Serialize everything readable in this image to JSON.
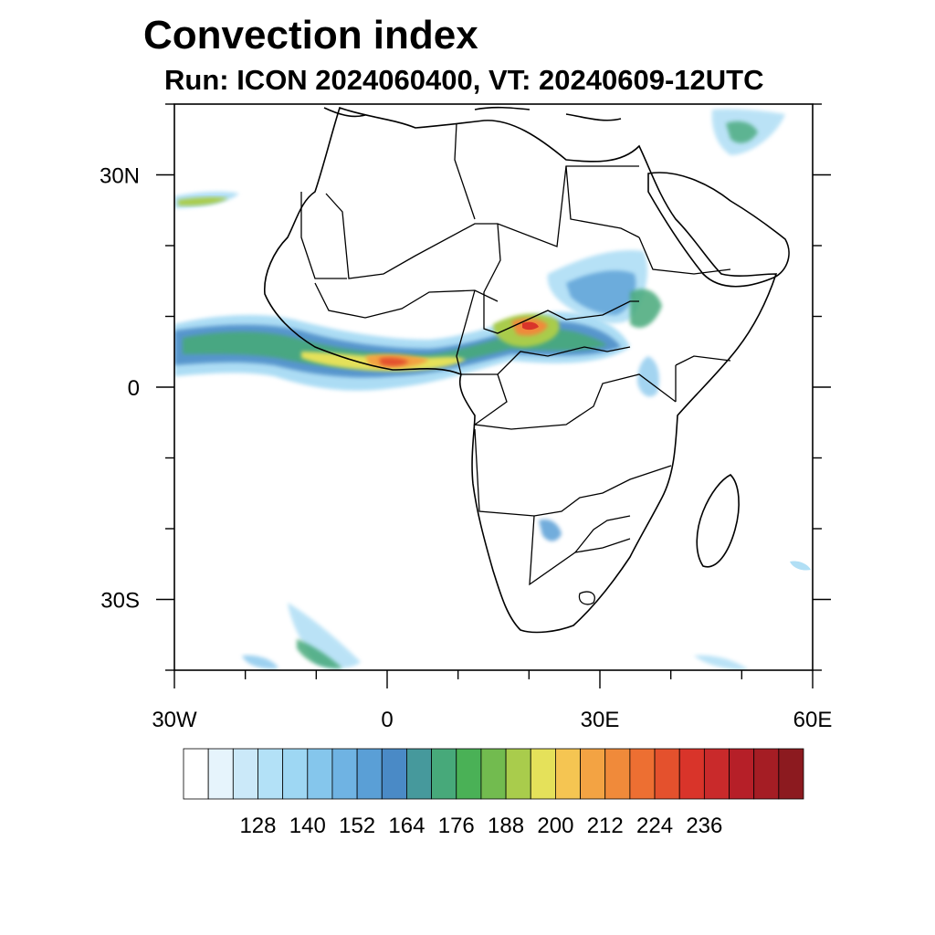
{
  "title": "Convection index",
  "subtitle": "Run: ICON 2024060400,  VT: 20240609-12UTC",
  "map": {
    "lon_ticks": [
      {
        "lon": -30,
        "label": "30W"
      },
      {
        "lon": 0,
        "label": "0"
      },
      {
        "lon": 30,
        "label": "30E"
      },
      {
        "lon": 60,
        "label": "60E"
      }
    ],
    "lat_ticks": [
      {
        "lat": 30,
        "label": "30N"
      },
      {
        "lat": 0,
        "label": "0"
      },
      {
        "lat": -30,
        "label": "30S"
      }
    ],
    "lon_range": [
      -30,
      60
    ],
    "lat_range": [
      -40,
      40
    ]
  },
  "colorbar": {
    "colors": [
      "#ffffff",
      "#e6f4fc",
      "#cbe9f9",
      "#b3e1f7",
      "#9ed7f3",
      "#85c6ec",
      "#6fb3e3",
      "#5a9fd6",
      "#4a8ac6",
      "#46999c",
      "#47a97a",
      "#4ab156",
      "#72bb4f",
      "#a9cc4c",
      "#e5e15a",
      "#f5c552",
      "#f3a343",
      "#f08a3a",
      "#ed6f32",
      "#e4512d",
      "#d9342a",
      "#c92a2b",
      "#b61f28",
      "#a51d24",
      "#8c1a1f"
    ],
    "labels": [
      "128",
      "140",
      "152",
      "164",
      "176",
      "188",
      "200",
      "212",
      "224",
      "236"
    ]
  }
}
